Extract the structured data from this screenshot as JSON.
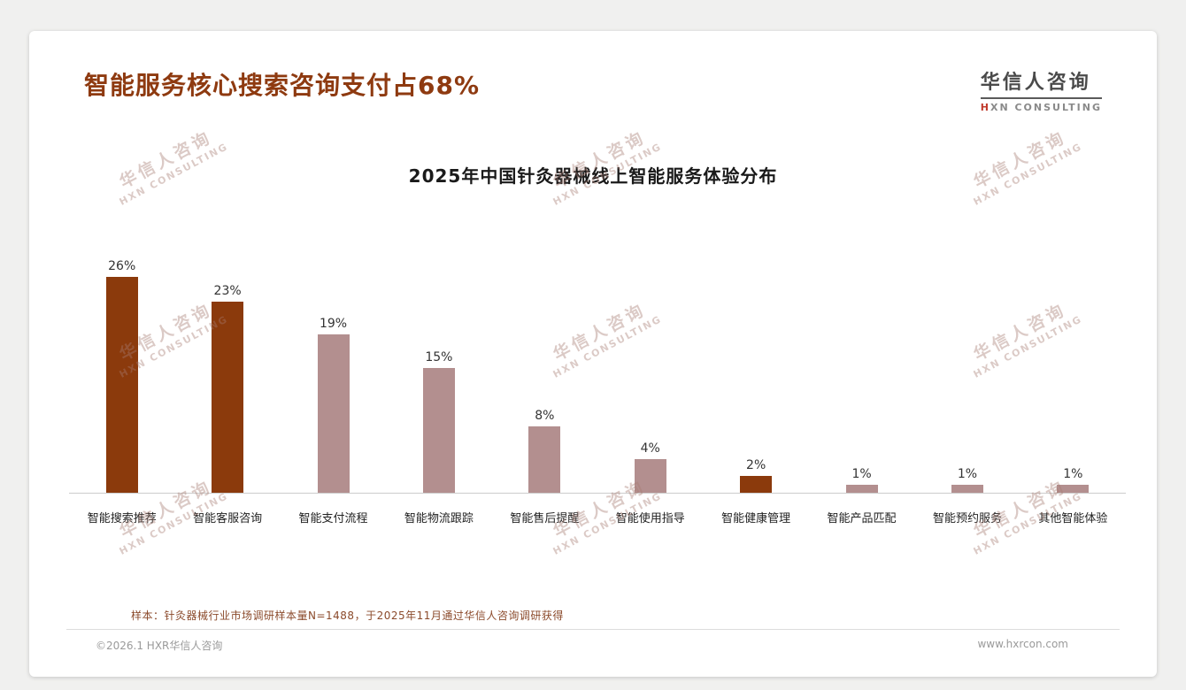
{
  "page": {
    "title": "智能服务核心搜索咨询支付占68%",
    "logo": {
      "cn": "华信人咨询",
      "en_accent": "H",
      "en_rest": "XN CONSULTING"
    },
    "watermark": {
      "cn": "华信人咨询",
      "en": "HXN CONSULTING"
    },
    "footnote": "样本：针灸器械行业市场调研样本量N=1488，于2025年11月通过华信人咨询调研获得",
    "footer_left": "©2026.1 HXR华信人咨询",
    "footer_right": "www.hxrcon.com"
  },
  "chart_data": {
    "type": "bar",
    "title": "2025年中国针灸器械线上智能服务体验分布",
    "categories": [
      "智能搜索推荐",
      "智能客服咨询",
      "智能支付流程",
      "智能物流跟踪",
      "智能售后提醒",
      "智能使用指导",
      "智能健康管理",
      "智能产品匹配",
      "智能预约服务",
      "其他智能体验"
    ],
    "values": [
      26,
      23,
      19,
      15,
      8,
      4,
      2,
      1,
      1,
      1
    ],
    "value_labels": [
      "26%",
      "23%",
      "19%",
      "15%",
      "8%",
      "4%",
      "2%",
      "1%",
      "1%",
      "1%"
    ],
    "bar_colors": [
      "#8B3A0C",
      "#8B3A0C",
      "#B38F8F",
      "#B38F8F",
      "#B38F8F",
      "#B38F8F",
      "#8B3A0C",
      "#B38F8F",
      "#B38F8F",
      "#B38F8F"
    ],
    "xlabel": "",
    "ylabel": "",
    "ylim": [
      0,
      28
    ],
    "grid": false,
    "legend": "none",
    "colors": {
      "dark": "#8B3A0C",
      "light": "#B38F8F"
    }
  }
}
